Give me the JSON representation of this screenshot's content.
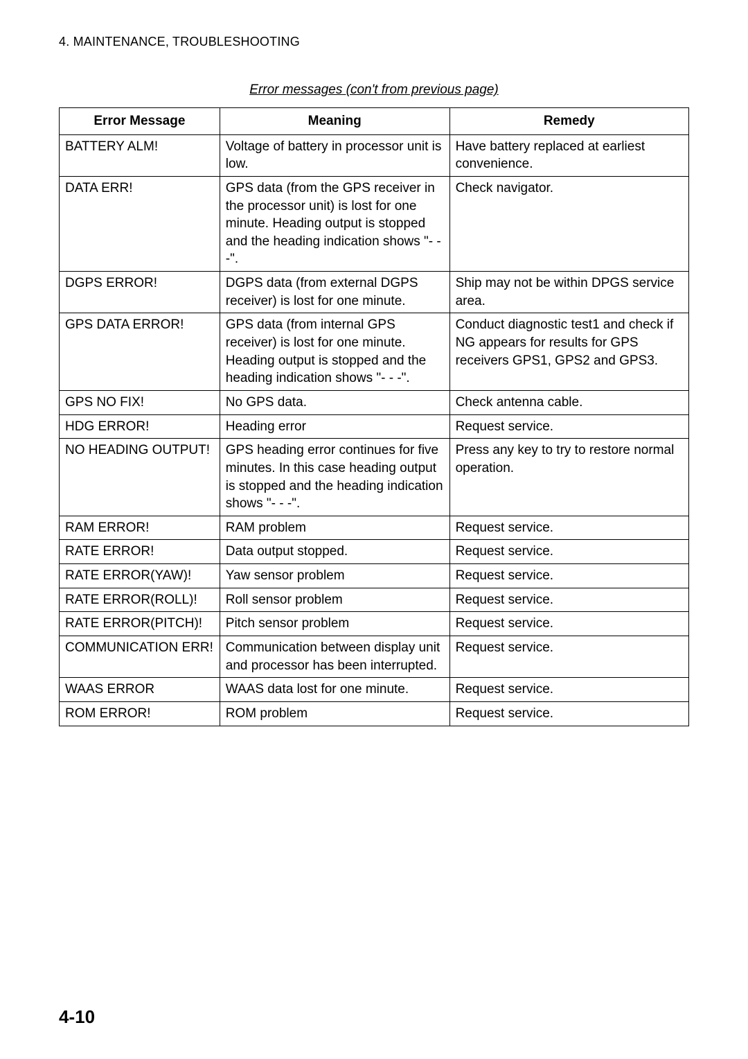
{
  "section_header": "4. MAINTENANCE, TROUBLESHOOTING",
  "table_caption": "Error messages (con't from previous page)",
  "headers": {
    "col1": "Error Message",
    "col2": "Meaning",
    "col3": "Remedy"
  },
  "rows": [
    {
      "error": "BATTERY ALM!",
      "meaning": "Voltage of battery in processor unit is low.",
      "remedy": "Have battery replaced at earliest convenience."
    },
    {
      "error": "DATA ERR!",
      "meaning": "GPS data (from the GPS receiver in the processor unit) is lost for one minute. Heading output is stopped and the heading indication shows \"- - -\".",
      "remedy": "Check navigator."
    },
    {
      "error": "DGPS ERROR!",
      "meaning": "DGPS data (from external DGPS receiver) is lost for one minute.",
      "remedy": "Ship may not be within DPGS service area."
    },
    {
      "error": "GPS DATA ERROR!",
      "meaning": "GPS data (from internal GPS receiver) is lost for one minute. Heading output is stopped and the heading indication shows \"- - -\".",
      "remedy": "Conduct diagnostic test1 and check if NG appears for results for GPS receivers GPS1, GPS2 and GPS3."
    },
    {
      "error": "GPS NO FIX!",
      "meaning": "No GPS data.",
      "remedy": "Check antenna cable."
    },
    {
      "error": "HDG ERROR!",
      "meaning": "Heading error",
      "remedy": "Request service."
    },
    {
      "error": "NO HEADING OUTPUT!",
      "meaning": "GPS heading error continues for five minutes. In this case heading output is stopped and the heading indication shows \"- - -\".",
      "remedy": "Press any key to try to restore normal operation."
    },
    {
      "error": "RAM ERROR!",
      "meaning": "RAM problem",
      "remedy": "Request service."
    },
    {
      "error": "RATE ERROR!",
      "meaning": "Data output stopped.",
      "remedy": "Request service."
    },
    {
      "error": "RATE ERROR(YAW)!",
      "meaning": "Yaw sensor problem",
      "remedy": "Request service."
    },
    {
      "error": "RATE ERROR(ROLL)!",
      "meaning": "Roll sensor problem",
      "remedy": "Request service."
    },
    {
      "error": "RATE ERROR(PITCH)!",
      "meaning": "Pitch sensor problem",
      "remedy": "Request service."
    },
    {
      "error": "COMMUNICATION ERR!",
      "meaning": "Communication between display unit and processor has been interrupted.",
      "remedy": "Request service."
    },
    {
      "error": "WAAS ERROR",
      "meaning": "WAAS data lost for one minute.",
      "remedy": "Request service."
    },
    {
      "error": "ROM ERROR!",
      "meaning": "ROM problem",
      "remedy": "Request service."
    }
  ],
  "page_number": "4-10"
}
